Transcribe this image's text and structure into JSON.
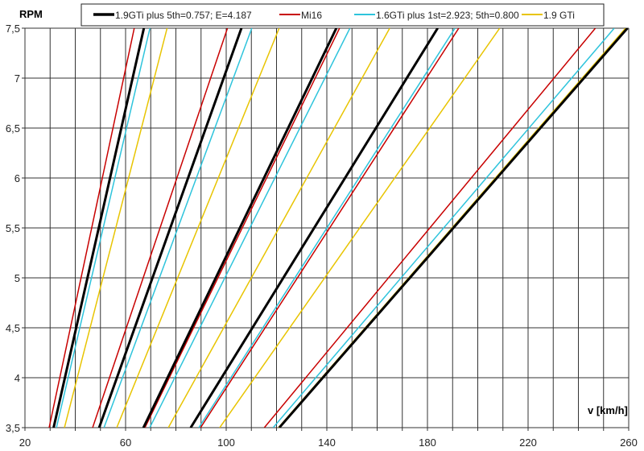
{
  "chart_data": {
    "type": "line",
    "title": "",
    "xlabel": "v [km/h]",
    "ylabel": "RPM",
    "xlim": [
      20,
      260
    ],
    "ylim": [
      3.5,
      7.5
    ],
    "x_ticks": [
      "20",
      "60",
      "100",
      "140",
      "180",
      "220",
      "260"
    ],
    "x_tick_values": [
      20,
      60,
      100,
      140,
      180,
      220,
      260
    ],
    "x_grid_step": 10,
    "y_ticks": [
      "3,5",
      "4",
      "4,5",
      "5",
      "5,5",
      "6",
      "6,5",
      "7",
      "7,5"
    ],
    "y_tick_values": [
      3.5,
      4,
      4.5,
      5,
      5.5,
      6,
      6.5,
      7,
      7.5
    ],
    "grid": true,
    "legend_position": "top",
    "note": "Each series holds one line per gear: speed in km/h per 1000 RPM (RPM = v / k * 1000)",
    "series": [
      {
        "name": "1.9GTi plus 5th=0.757; E=4.187",
        "color": "#000000",
        "width": 3,
        "kmh_per_1000rpm": [
          8.97,
          14.14,
          19.17,
          24.54,
          34.6
        ]
      },
      {
        "name": "Mi16",
        "color": "#c80000",
        "width": 1.5,
        "kmh_per_1000rpm": [
          8.46,
          13.4,
          19.34,
          25.66,
          32.9
        ]
      },
      {
        "name": "1.6GTi plus 1st=2.923; 5th=0.800",
        "color": "#2ec4dc",
        "width": 1.5,
        "kmh_per_1000rpm": [
          9.29,
          14.69,
          19.89,
          25.46,
          33.9
        ]
      },
      {
        "name": "1.9 GTi",
        "color": "#e8c400",
        "width": 1.5,
        "kmh_per_1000rpm": [
          10.2,
          16.14,
          22.0,
          27.83,
          34.5
        ]
      }
    ]
  }
}
